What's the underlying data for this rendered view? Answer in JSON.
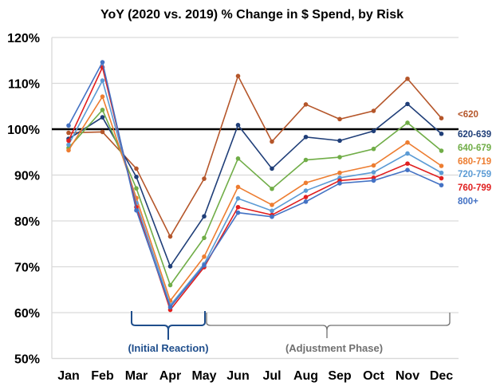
{
  "chart_data": {
    "type": "line",
    "title": "YoY (2020 vs. 2019) % Change in $ Spend, by Risk",
    "xlabel": "",
    "ylabel": "",
    "categories": [
      "Jan",
      "Feb",
      "Mar",
      "Apr",
      "May",
      "Jun",
      "Jul",
      "Aug",
      "Sep",
      "Oct",
      "Nov",
      "Dec"
    ],
    "ylim": [
      50,
      120
    ],
    "yticks": [
      "50%",
      "60%",
      "70%",
      "80%",
      "90%",
      "100%",
      "110%",
      "120%"
    ],
    "grid": true,
    "legend": "right, labels at line ends",
    "reference_line": 100,
    "series": [
      {
        "name": "<620",
        "color": "#B5562A",
        "values": [
          99.2,
          99.4,
          91.4,
          76.6,
          89.2,
          111.6,
          97.3,
          105.4,
          102.2,
          104.0,
          111.0,
          102.4
        ]
      },
      {
        "name": "620-639",
        "color": "#1F3E78",
        "values": [
          97.9,
          102.6,
          89.6,
          70.1,
          81.0,
          100.9,
          91.4,
          98.3,
          97.5,
          99.6,
          105.5,
          99.0
        ]
      },
      {
        "name": "640-679",
        "color": "#70AD47",
        "values": [
          95.9,
          104.2,
          87.1,
          66.0,
          76.3,
          93.6,
          87.0,
          93.3,
          93.9,
          95.7,
          101.4,
          95.3
        ]
      },
      {
        "name": "680-719",
        "color": "#ED7D31",
        "values": [
          95.4,
          107.1,
          85.0,
          62.6,
          72.2,
          87.4,
          83.5,
          88.3,
          90.5,
          92.1,
          97.1,
          92.0
        ]
      },
      {
        "name": "720-759",
        "color": "#5B9BD5",
        "values": [
          96.6,
          110.6,
          83.9,
          61.6,
          70.6,
          84.9,
          82.2,
          86.6,
          89.4,
          90.6,
          94.7,
          90.5
        ]
      },
      {
        "name": "760-799",
        "color": "#E02020",
        "values": [
          97.5,
          113.5,
          83.0,
          60.6,
          69.9,
          83.0,
          81.3,
          85.2,
          88.8,
          89.4,
          92.5,
          89.3
        ]
      },
      {
        "name": "800+",
        "color": "#4472C4",
        "values": [
          100.8,
          114.6,
          82.3,
          61.2,
          70.3,
          81.8,
          80.9,
          84.2,
          88.2,
          88.8,
          91.1,
          87.8
        ]
      }
    ],
    "annotations": [
      {
        "text": "(Initial Reaction)",
        "color": "#1F4E8C",
        "span": [
          "Mar",
          "May"
        ]
      },
      {
        "text": "(Adjustment Phase)",
        "color": "#707070",
        "span": [
          "May",
          "Dec"
        ]
      }
    ]
  }
}
